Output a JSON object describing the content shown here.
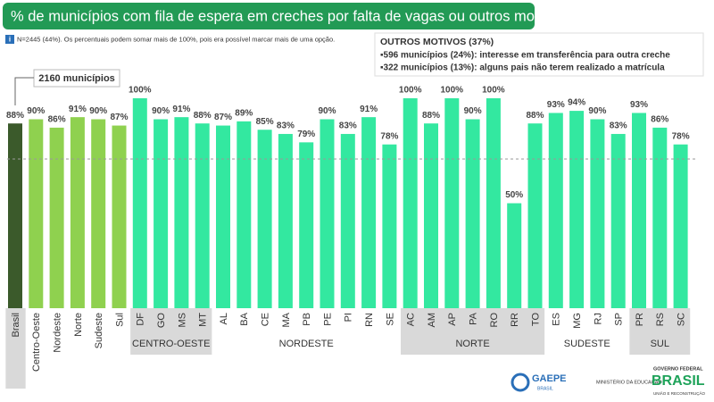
{
  "header": {
    "title": "% de municípios com fila de espera em creches por falta de vagas ou outros motivos",
    "note_icon": "i",
    "note": "N=2445 (44%). Os percentuais podem somar mais de 100%, pois era possível marcar mais de uma opção."
  },
  "side_box": {
    "title": "OUTROS MOTIVOS (37%)",
    "items": [
      "▪596 municípios (24%): interesse em transferência para outra creche",
      "▪322 municípios (13%): alguns pais não terem realizado a matrícula"
    ]
  },
  "callout": "2160 municípios",
  "logos": {
    "gaepe": "GAEPE",
    "gaepe_sub": "BRASIL",
    "ministry": "MINISTÉRIO DA EDUCAÇÃO",
    "gov": "GOVERNO FEDERAL",
    "gov_name": "BRASIL",
    "gov_sub": "UNIÃO E RECONSTRUÇÃO"
  },
  "chart_data": {
    "type": "bar",
    "categories": [
      "Brasil",
      "Centro-Oeste",
      "Nordeste",
      "Norte",
      "Sudeste",
      "Sul",
      "DF",
      "GO",
      "MS",
      "MT",
      "AL",
      "BA",
      "CE",
      "MA",
      "PB",
      "PE",
      "PI",
      "RN",
      "SE",
      "AC",
      "AM",
      "AP",
      "PA",
      "RO",
      "RR",
      "TO",
      "ES",
      "MG",
      "RJ",
      "SP",
      "PR",
      "RS",
      "SC"
    ],
    "values": [
      88,
      90,
      86,
      91,
      90,
      87,
      100,
      90,
      91,
      88,
      87,
      89,
      85,
      83,
      79,
      90,
      83,
      91,
      78,
      100,
      88,
      100,
      90,
      100,
      50,
      88,
      93,
      94,
      90,
      83,
      93,
      86,
      78
    ],
    "value_labels": [
      "88%",
      "90%",
      "86%",
      "91%",
      "90%",
      "87%",
      "100%",
      "90%",
      "91%",
      "88%",
      "87%",
      "89%",
      "85%",
      "83%",
      "79%",
      "90%",
      "83%",
      "91%",
      "78%",
      "100%",
      "88%",
      "100%",
      "90%",
      "100%",
      "50%",
      "88%",
      "93%",
      "94%",
      "90%",
      "83%",
      "93%",
      "86%",
      "78%"
    ],
    "colors": [
      "#3b5a2b",
      "#8fd14f",
      "#8fd14f",
      "#8fd14f",
      "#8fd14f",
      "#8fd14f",
      "#33e8a0",
      "#33e8a0",
      "#33e8a0",
      "#33e8a0",
      "#33e8a0",
      "#33e8a0",
      "#33e8a0",
      "#33e8a0",
      "#33e8a0",
      "#33e8a0",
      "#33e8a0",
      "#33e8a0",
      "#33e8a0",
      "#33e8a0",
      "#33e8a0",
      "#33e8a0",
      "#33e8a0",
      "#33e8a0",
      "#33e8a0",
      "#33e8a0",
      "#33e8a0",
      "#33e8a0",
      "#33e8a0",
      "#33e8a0",
      "#33e8a0",
      "#33e8a0",
      "#33e8a0"
    ],
    "ylim": [
      0,
      100
    ],
    "groups": [
      {
        "label": "CENTRO-OESTE",
        "members": [
          "DF",
          "GO",
          "MS",
          "MT"
        ]
      },
      {
        "label": "NORDESTE",
        "members": [
          "AL",
          "BA",
          "CE",
          "MA",
          "PB",
          "PE",
          "PI",
          "RN",
          "SE"
        ]
      },
      {
        "label": "NORTE",
        "members": [
          "AC",
          "AM",
          "AP",
          "PA",
          "RO",
          "RR",
          "TO"
        ]
      },
      {
        "label": "SUDESTE",
        "members": [
          "ES",
          "MG",
          "RJ",
          "SP"
        ]
      },
      {
        "label": "SUL",
        "members": [
          "PR",
          "RS",
          "SC"
        ]
      }
    ]
  }
}
